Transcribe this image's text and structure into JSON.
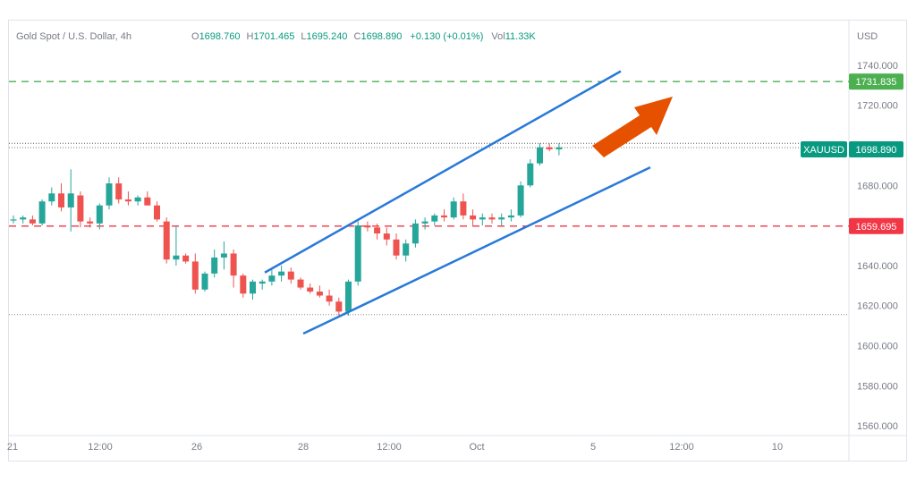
{
  "header": {
    "symbol": "Gold Spot / U.S. Dollar, 4h",
    "o_label": "O",
    "o_value": "1698.760",
    "h_label": "H",
    "h_value": "1701.465",
    "l_label": "L",
    "l_value": "1695.240",
    "c_label": "C",
    "c_value": "1698.890",
    "change": "+0.130 (+0.01%)",
    "vol_label": "Vol",
    "vol_value": "11.33K"
  },
  "chart_data": {
    "type": "candlestick",
    "currency": "USD",
    "y_ticks": [
      1740,
      1720,
      1700,
      1680,
      1660,
      1640,
      1620,
      1600,
      1580,
      1560
    ],
    "y_tick_labels": [
      "1740.000",
      "1720.000",
      "1700.000",
      "1680.000",
      "1660.000",
      "1640.000",
      "1620.000",
      "1600.000",
      "1580.000",
      "1560.000"
    ],
    "ylim": [
      1552,
      1772
    ],
    "x_tick_labels": [
      "21",
      "12:00",
      "26",
      "28",
      "12:00",
      "Oct",
      "5",
      "12:00",
      "10"
    ],
    "price_labels": {
      "resistance": "1731.835",
      "symbol": "XAUUSD",
      "current": "1698.890",
      "support": "1659.695"
    },
    "levels": {
      "resistance": 1731.835,
      "current": 1698.89,
      "support": 1659.695,
      "upper_dotted": 1701.0,
      "lower_dotted": 1615.5
    },
    "channel": {
      "upper": [
        [
          1636.5,
          1737.0
        ]
      ],
      "lower": [
        [
          1606.0,
          1689.0
        ]
      ]
    },
    "candles": [
      [
        1663,
        1665,
        1661,
        1663
      ],
      [
        1663,
        1665,
        1661,
        1664
      ],
      [
        1663,
        1665,
        1660,
        1661
      ],
      [
        1661,
        1673,
        1660,
        1672
      ],
      [
        1672,
        1679,
        1670,
        1676
      ],
      [
        1676,
        1681,
        1667,
        1669
      ],
      [
        1669,
        1688,
        1657,
        1676
      ],
      [
        1675,
        1677,
        1659,
        1662
      ],
      [
        1662,
        1664,
        1659,
        1661
      ],
      [
        1661,
        1671,
        1658,
        1670
      ],
      [
        1670,
        1684,
        1668,
        1681
      ],
      [
        1681,
        1684,
        1671,
        1673
      ],
      [
        1673,
        1677,
        1670,
        1672
      ],
      [
        1672,
        1675,
        1670,
        1674
      ],
      [
        1674,
        1677,
        1670,
        1670
      ],
      [
        1670,
        1672,
        1662,
        1663
      ],
      [
        1662,
        1664,
        1641,
        1643
      ],
      [
        1643,
        1660,
        1640,
        1645
      ],
      [
        1645,
        1646,
        1641,
        1642
      ],
      [
        1642,
        1646,
        1626,
        1628
      ],
      [
        1628,
        1637,
        1627,
        1636
      ],
      [
        1636,
        1648,
        1634,
        1644
      ],
      [
        1644,
        1652,
        1638,
        1646
      ],
      [
        1646,
        1648,
        1629,
        1635
      ],
      [
        1635,
        1636,
        1624,
        1626
      ],
      [
        1626,
        1633,
        1623,
        1632
      ],
      [
        1631,
        1633,
        1628,
        1632
      ],
      [
        1632,
        1638,
        1630,
        1635
      ],
      [
        1635,
        1640,
        1632,
        1637
      ],
      [
        1637,
        1639,
        1631,
        1633
      ],
      [
        1633,
        1634,
        1628,
        1629
      ],
      [
        1629,
        1631,
        1626,
        1627
      ],
      [
        1627,
        1630,
        1624,
        1625
      ],
      [
        1625,
        1628,
        1620,
        1622
      ],
      [
        1622,
        1624,
        1614,
        1617
      ],
      [
        1617,
        1633,
        1615,
        1632
      ],
      [
        1632,
        1662,
        1630,
        1660
      ],
      [
        1660,
        1662,
        1657,
        1659
      ],
      [
        1659,
        1661,
        1653,
        1656
      ],
      [
        1656,
        1659,
        1650,
        1653
      ],
      [
        1653,
        1656,
        1643,
        1645
      ],
      [
        1645,
        1653,
        1642,
        1651
      ],
      [
        1651,
        1663,
        1649,
        1661
      ],
      [
        1661,
        1664,
        1658,
        1662
      ],
      [
        1662,
        1666,
        1660,
        1665
      ],
      [
        1665,
        1668,
        1662,
        1664
      ],
      [
        1664,
        1674,
        1663,
        1672
      ],
      [
        1672,
        1676,
        1663,
        1665
      ],
      [
        1665,
        1668,
        1660,
        1663
      ],
      [
        1663,
        1666,
        1660,
        1664
      ],
      [
        1664,
        1666,
        1661,
        1663
      ],
      [
        1663,
        1666,
        1660,
        1664
      ],
      [
        1664,
        1668,
        1662,
        1665
      ],
      [
        1665,
        1682,
        1664,
        1680
      ],
      [
        1680,
        1693,
        1679,
        1691
      ],
      [
        1691,
        1701,
        1690,
        1699
      ],
      [
        1699,
        1701,
        1697,
        1698
      ],
      [
        1698,
        1701,
        1695,
        1699
      ]
    ]
  }
}
